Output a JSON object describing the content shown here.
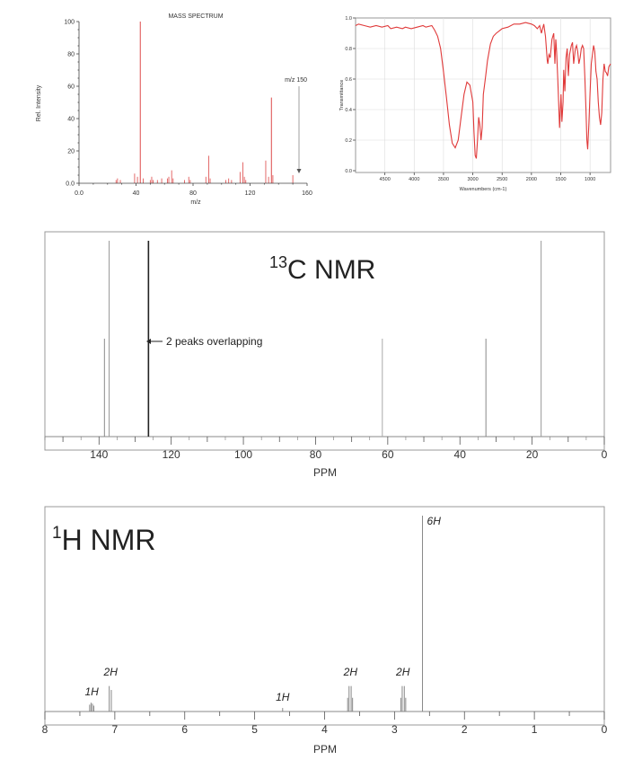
{
  "chart_data": [
    {
      "type": "bar",
      "title": "MASS SPECTRUM",
      "xlabel": "m/z",
      "ylabel": "Rel. Intensity",
      "xlim": [
        0,
        160
      ],
      "ylim": [
        0,
        100
      ],
      "xticks": [
        "0.0",
        "40",
        "80",
        "120",
        "160"
      ],
      "yticks": [
        "0.0",
        "20",
        "40",
        "60",
        "80",
        "100"
      ],
      "color": "#e05a5a",
      "peaks": [
        {
          "x": 26,
          "y": 2
        },
        {
          "x": 27,
          "y": 3
        },
        {
          "x": 29,
          "y": 2
        },
        {
          "x": 39,
          "y": 6
        },
        {
          "x": 41,
          "y": 4
        },
        {
          "x": 43,
          "y": 100
        },
        {
          "x": 45,
          "y": 3
        },
        {
          "x": 50,
          "y": 2
        },
        {
          "x": 51,
          "y": 4
        },
        {
          "x": 52,
          "y": 2
        },
        {
          "x": 55,
          "y": 2
        },
        {
          "x": 58,
          "y": 3
        },
        {
          "x": 62,
          "y": 3
        },
        {
          "x": 63,
          "y": 4
        },
        {
          "x": 65,
          "y": 8
        },
        {
          "x": 66,
          "y": 3
        },
        {
          "x": 74,
          "y": 2
        },
        {
          "x": 77,
          "y": 4
        },
        {
          "x": 78,
          "y": 2
        },
        {
          "x": 89,
          "y": 4
        },
        {
          "x": 91,
          "y": 17
        },
        {
          "x": 92,
          "y": 3
        },
        {
          "x": 103,
          "y": 2
        },
        {
          "x": 105,
          "y": 3
        },
        {
          "x": 107,
          "y": 2
        },
        {
          "x": 113,
          "y": 7
        },
        {
          "x": 115,
          "y": 13
        },
        {
          "x": 116,
          "y": 4
        },
        {
          "x": 117,
          "y": 2
        },
        {
          "x": 131,
          "y": 14
        },
        {
          "x": 133,
          "y": 4
        },
        {
          "x": 135,
          "y": 53
        },
        {
          "x": 136,
          "y": 5
        },
        {
          "x": 150,
          "y": 5
        }
      ],
      "annotation": {
        "text": "m/z 150",
        "x": 150
      }
    },
    {
      "type": "line",
      "title": "",
      "xlabel": "Wavenumbers (cm-1)",
      "ylabel": "Transmittance",
      "xlim": [
        5000,
        650
      ],
      "ylim": [
        0,
        1.0
      ],
      "xticks": [
        "4500",
        "4000",
        "3500",
        "3000",
        "2500",
        "2000",
        "1500",
        "1000"
      ],
      "yticks": [
        "0.0",
        "0.2",
        "0.4",
        "0.6",
        "0.8",
        "1.0"
      ],
      "color": "#e03a3a",
      "x": [
        5000,
        4950,
        4850,
        4750,
        4650,
        4550,
        4450,
        4400,
        4300,
        4200,
        4150,
        4050,
        3950,
        3850,
        3800,
        3700,
        3650,
        3600,
        3550,
        3500,
        3450,
        3400,
        3350,
        3300,
        3250,
        3200,
        3150,
        3100,
        3050,
        3000,
        2980,
        2960,
        2940,
        2920,
        2900,
        2880,
        2860,
        2840,
        2820,
        2780,
        2750,
        2700,
        2650,
        2600,
        2500,
        2400,
        2300,
        2200,
        2100,
        2000,
        1950,
        1900,
        1860,
        1830,
        1810,
        1790,
        1760,
        1730,
        1720,
        1700,
        1680,
        1650,
        1620,
        1600,
        1585,
        1570,
        1550,
        1520,
        1495,
        1480,
        1460,
        1450,
        1430,
        1410,
        1390,
        1370,
        1350,
        1320,
        1300,
        1280,
        1250,
        1230,
        1210,
        1190,
        1170,
        1150,
        1130,
        1110,
        1090,
        1070,
        1055,
        1040,
        1020,
        1000,
        980,
        960,
        940,
        920,
        900,
        880,
        860,
        840,
        820,
        800,
        780,
        760,
        740,
        720,
        700,
        680,
        650
      ],
      "y": [
        0.95,
        0.96,
        0.95,
        0.94,
        0.95,
        0.94,
        0.95,
        0.93,
        0.94,
        0.93,
        0.94,
        0.93,
        0.94,
        0.95,
        0.94,
        0.95,
        0.92,
        0.88,
        0.8,
        0.65,
        0.48,
        0.3,
        0.18,
        0.15,
        0.2,
        0.35,
        0.5,
        0.58,
        0.56,
        0.45,
        0.25,
        0.1,
        0.08,
        0.2,
        0.35,
        0.3,
        0.2,
        0.28,
        0.5,
        0.62,
        0.72,
        0.83,
        0.88,
        0.9,
        0.93,
        0.94,
        0.96,
        0.96,
        0.97,
        0.96,
        0.95,
        0.93,
        0.95,
        0.9,
        0.93,
        0.96,
        0.88,
        0.72,
        0.7,
        0.76,
        0.74,
        0.86,
        0.9,
        0.7,
        0.86,
        0.78,
        0.6,
        0.28,
        0.5,
        0.32,
        0.45,
        0.66,
        0.52,
        0.74,
        0.8,
        0.62,
        0.76,
        0.82,
        0.84,
        0.7,
        0.8,
        0.82,
        0.78,
        0.7,
        0.74,
        0.8,
        0.82,
        0.8,
        0.62,
        0.4,
        0.2,
        0.14,
        0.3,
        0.5,
        0.7,
        0.76,
        0.82,
        0.78,
        0.65,
        0.6,
        0.45,
        0.35,
        0.3,
        0.38,
        0.6,
        0.7,
        0.65,
        0.64,
        0.62,
        0.68,
        0.7
      ]
    },
    {
      "type": "bar",
      "title_main": "C NMR",
      "title_sup": "13",
      "xlabel": "PPM",
      "xlim": [
        155,
        0
      ],
      "xticks": [
        "140",
        "120",
        "100",
        "80",
        "60",
        "40",
        "20",
        "0"
      ],
      "annotation": {
        "text": "2 peaks overlapping",
        "x": 126
      },
      "peaks": [
        {
          "x": 138.5,
          "h": 0.5,
          "color": "#888888",
          "width": 1
        },
        {
          "x": 137.2,
          "h": 1.0,
          "color": "#999999",
          "width": 1
        },
        {
          "x": 126.3,
          "h": 1.0,
          "color": "#222222",
          "width": 1.6
        },
        {
          "x": 61.5,
          "h": 0.5,
          "color": "#aaaaaa",
          "width": 1
        },
        {
          "x": 32.8,
          "h": 0.5,
          "color": "#888888",
          "width": 1
        },
        {
          "x": 17.5,
          "h": 1.0,
          "color": "#999999",
          "width": 1
        }
      ]
    },
    {
      "type": "line",
      "title_main": "H NMR",
      "title_sup": "1",
      "xlabel": "PPM",
      "xlim": [
        8,
        0
      ],
      "xticks": [
        "8",
        "7",
        "6",
        "5",
        "4",
        "3",
        "2",
        "1",
        "0"
      ],
      "integrations": [
        {
          "text": "1H",
          "x": 7.33
        },
        {
          "text": "2H",
          "x": 7.06
        },
        {
          "text": "1H",
          "x": 4.6
        },
        {
          "text": "2H",
          "x": 3.63
        },
        {
          "text": "2H",
          "x": 2.88
        },
        {
          "text": "6H",
          "x": 2.55
        }
      ],
      "peaks": [
        {
          "x": 7.36,
          "h": 0.035
        },
        {
          "x": 7.34,
          "h": 0.045
        },
        {
          "x": 7.32,
          "h": 0.04
        },
        {
          "x": 7.3,
          "h": 0.03
        },
        {
          "x": 7.08,
          "h": 0.13
        },
        {
          "x": 7.05,
          "h": 0.11
        },
        {
          "x": 4.6,
          "h": 0.018
        },
        {
          "x": 3.67,
          "h": 0.07
        },
        {
          "x": 3.65,
          "h": 0.13
        },
        {
          "x": 3.62,
          "h": 0.13
        },
        {
          "x": 3.6,
          "h": 0.07
        },
        {
          "x": 2.91,
          "h": 0.07
        },
        {
          "x": 2.89,
          "h": 0.13
        },
        {
          "x": 2.86,
          "h": 0.13
        },
        {
          "x": 2.84,
          "h": 0.07
        },
        {
          "x": 2.6,
          "h": 1.0
        }
      ]
    }
  ]
}
